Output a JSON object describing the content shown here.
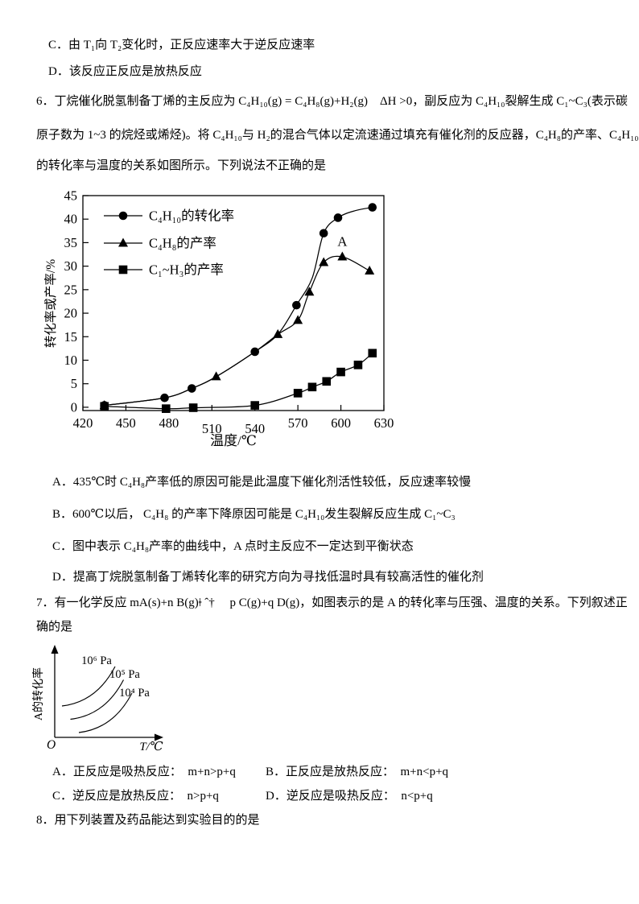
{
  "q5": {
    "option_c": "C．由 T₁向 T₂变化时，正反应速率大于逆反应速率",
    "option_d": "D．该反应正反应是放热反应"
  },
  "q6": {
    "line1": "6．丁烷催化脱氢制备丁烯的主反应为 C₄H₁₀(g) = C₄H₈(g)+H₂(g)　ΔH >0，副反应为 C₄H₁₀裂解生成 C₁~C₃(表示碳",
    "line2": "原子数为 1~3 的烷烃或烯烃)。将 C₄H₁₀与 H₂的混合气体以定流速通过填充有催化剂的反应器，C₄H₈的产率、C₄H₁₀",
    "line3": "的转化率与温度的关系如图所示。下列说法不正确的是",
    "options": [
      "A．435℃时 C₄H₈产率低的原因可能是此温度下催化剂活性较低，反应速率较慢",
      "B．600℃以后， C₄H₈ 的产率下降原因可能是 C₄H₁₀发生裂解反应生成 C₁~C₃",
      "C．图中表示 C₄H₈产率的曲线中，A 点时主反应不一定达到平衡状态",
      "D．提高丁烷脱氢制备丁烯转化率的研究方向为寻找低温时具有较高活性的催化剂"
    ]
  },
  "chart_data": [
    {
      "type": "line",
      "title": "",
      "xlabel": "温度/℃",
      "ylabel": "转化率或产率/%",
      "xlim": [
        420,
        630
      ],
      "ylim": [
        0,
        45
      ],
      "x_ticks": [
        420,
        450,
        480,
        510,
        540,
        570,
        600,
        630
      ],
      "y_ticks": [
        0,
        5,
        10,
        15,
        20,
        25,
        30,
        35,
        40,
        45
      ],
      "grid": false,
      "legend_position": "top-left-inside",
      "annotation": {
        "text": "A",
        "x": 601,
        "y": 34.3
      },
      "series": [
        {
          "name": "C₄H₁₀的转化率",
          "marker": "circle",
          "points": [
            [
              435,
              0.4
            ],
            [
              477,
              2
            ],
            [
              496,
              4
            ],
            [
              540,
              11.8
            ],
            [
              569,
              21.7
            ],
            [
              588,
              37
            ],
            [
              598,
              40.3
            ],
            [
              622,
              42.5
            ]
          ],
          "line": [
            [
              435,
              0.4
            ],
            [
              477,
              2
            ],
            [
              496,
              4
            ],
            [
              513,
              6.5
            ],
            [
              540,
              11.8
            ],
            [
              556,
              15.5
            ],
            [
              569,
              21.7
            ],
            [
              580,
              27.5
            ],
            [
              588,
              37
            ],
            [
              598,
              40.3
            ],
            [
              610,
              41.8
            ],
            [
              622,
              42.5
            ]
          ]
        },
        {
          "name": "C₄H₈的产率",
          "marker": "triangle",
          "points": [
            [
              435,
              0.4
            ],
            [
              513,
              6.5
            ],
            [
              556,
              15.5
            ],
            [
              570,
              18.5
            ],
            [
              578,
              24.5
            ],
            [
              588,
              30.8
            ],
            [
              601,
              32
            ],
            [
              620,
              29
            ]
          ],
          "line": [
            [
              435,
              0.4
            ],
            [
              477,
              2
            ],
            [
              496,
              4
            ],
            [
              513,
              6.5
            ],
            [
              540,
              11.8
            ],
            [
              556,
              15.5
            ],
            [
              570,
              18.5
            ],
            [
              578,
              24.5
            ],
            [
              588,
              30.8
            ],
            [
              601,
              32
            ],
            [
              620,
              29
            ]
          ]
        },
        {
          "name": "C₁~H₃的产率",
          "marker": "square",
          "points": [
            [
              435,
              0.2
            ],
            [
              478,
              -0.3
            ],
            [
              497,
              -0.1
            ],
            [
              540,
              0.4
            ],
            [
              570,
              3
            ],
            [
              580,
              4.3
            ],
            [
              590,
              5.5
            ],
            [
              600,
              7.5
            ],
            [
              612,
              9
            ],
            [
              622,
              11.5
            ]
          ],
          "line": [
            [
              435,
              0.2
            ],
            [
              478,
              -0.3
            ],
            [
              497,
              -0.1
            ],
            [
              540,
              0.4
            ],
            [
              570,
              3
            ],
            [
              580,
              4.3
            ],
            [
              590,
              5.5
            ],
            [
              600,
              7.5
            ],
            [
              612,
              9
            ],
            [
              622,
              11.5
            ]
          ]
        }
      ]
    },
    {
      "type": "line",
      "title": "",
      "xlabel": "T/℃",
      "ylabel": "A的转化率",
      "origin_label": "O",
      "grid": false,
      "curves": [
        {
          "label": "10⁶ Pa",
          "shape": "increasing-concave-up"
        },
        {
          "label": "10⁵ Pa",
          "shape": "increasing-concave-up"
        },
        {
          "label": "10⁴ Pa",
          "shape": "increasing-concave-up"
        }
      ]
    }
  ],
  "q7": {
    "line1": "7．有一化学反应 mA(s)+n B(g)ǂ ˆ†　 p C(g)+q D(g)，如图表示的是 A 的转化率与压强、温度的关系。下列叙述正",
    "line2": "确的是",
    "options": [
      "A．正反应是吸热反应：  m+n>p+q",
      "B．正反应是放热反应：  m+n<p+q",
      "C．逆反应是放热反应：  n>p+q",
      "D．逆反应是吸热反应：  n<p+q"
    ]
  },
  "q8": {
    "line1": "8．用下列装置及药品能达到实验目的的是"
  }
}
